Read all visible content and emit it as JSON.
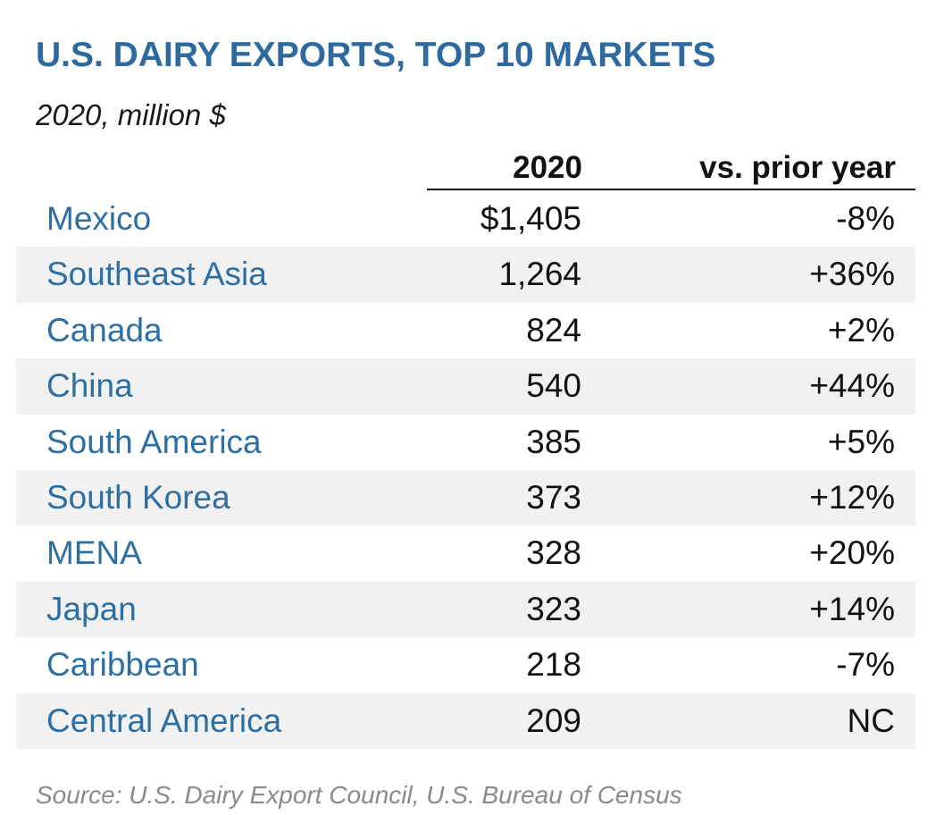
{
  "chart_data": {
    "type": "table",
    "title": "U.S. DAIRY EXPORTS, TOP 10 MARKETS",
    "subtitle": "2020, million $",
    "columns": [
      "2020",
      "vs. prior year"
    ],
    "rows": [
      {
        "market": "Mexico",
        "value": "$1,405",
        "change": "-8%"
      },
      {
        "market": "Southeast Asia",
        "value": "1,264",
        "change": "+36%"
      },
      {
        "market": "Canada",
        "value": "824",
        "change": "+2%"
      },
      {
        "market": "China",
        "value": "540",
        "change": "+44%"
      },
      {
        "market": "South America",
        "value": "385",
        "change": "+5%"
      },
      {
        "market": "South Korea",
        "value": "373",
        "change": "+12%"
      },
      {
        "market": "MENA",
        "value": "328",
        "change": "+20%"
      },
      {
        "market": "Japan",
        "value": "323",
        "change": "+14%"
      },
      {
        "market": "Caribbean",
        "value": "218",
        "change": "-7%"
      },
      {
        "market": "Central America",
        "value": "209",
        "change": "NC"
      }
    ],
    "source": "Source: U.S. Dairy Export Council, U.S. Bureau of Census"
  },
  "colors": {
    "title": "#2e6a9f",
    "market_text": "#2e6fa3",
    "row_shade": "#f1f1f1",
    "source_text": "#8a8a8a"
  }
}
